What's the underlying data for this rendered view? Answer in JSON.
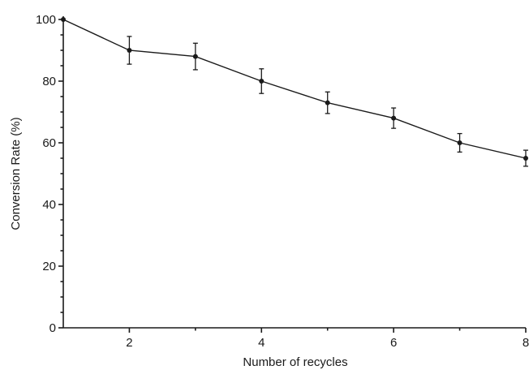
{
  "chart_data": {
    "type": "line",
    "title": "",
    "xlabel": "Number of recycles",
    "ylabel": "Conversion  Rate (%)",
    "xlim": [
      1,
      8
    ],
    "ylim": [
      0,
      100
    ],
    "x_ticks": [
      2,
      4,
      6,
      8
    ],
    "x_minor_ticks": [
      3,
      5,
      7
    ],
    "y_ticks": [
      0,
      20,
      40,
      60,
      80,
      100
    ],
    "y_minor_step": 5,
    "grid": false,
    "legend": "none",
    "series": [
      {
        "x": [
          1,
          2,
          3,
          4,
          5,
          6,
          7,
          8
        ],
        "values": [
          100,
          90,
          88,
          80,
          73,
          68,
          60,
          55
        ],
        "error": [
          0,
          4.5,
          4.3,
          4.0,
          3.5,
          3.3,
          3.0,
          2.6
        ]
      }
    ]
  }
}
